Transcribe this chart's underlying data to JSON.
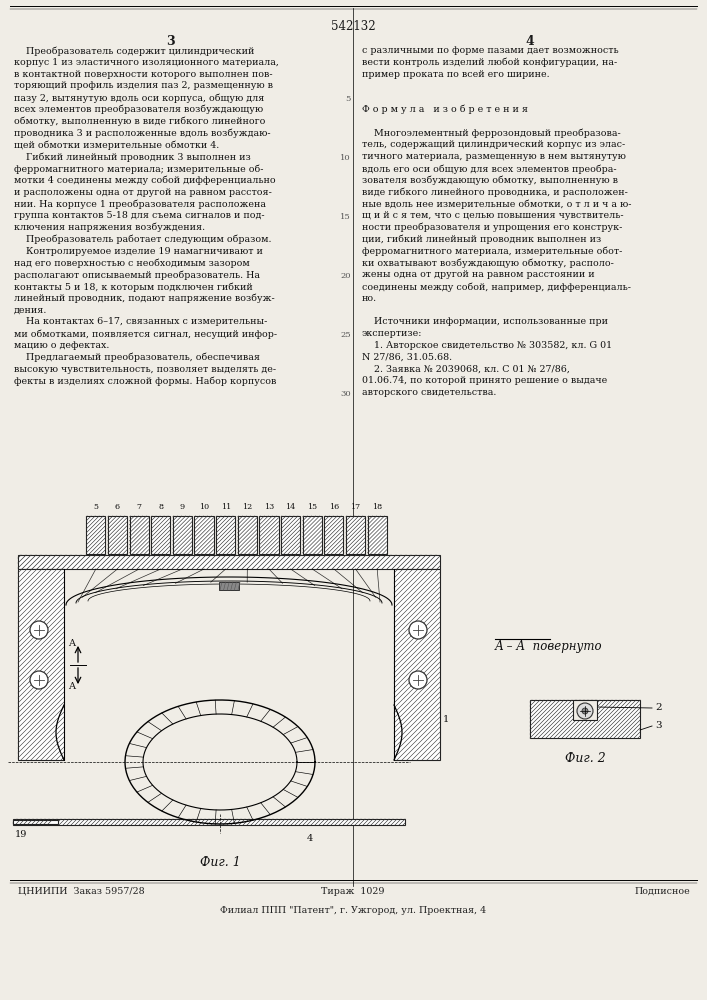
{
  "bg_color": "#f0ede6",
  "patent_number": "542132",
  "col_left_header": "3",
  "col_right_header": "4",
  "left_text_lines": [
    "    Преобразователь содержит цилиндрический",
    "корпус 1 из эластичного изоляционного материала,",
    "в контактной поверхности которого выполнен пов-",
    "торяющий профиль изделия паз 2, размещенную в",
    "пазу 2, вытянутую вдоль оси корпуса, общую для",
    "всех элементов преобразователя возбуждающую",
    "обмотку, выполненную в виде гибкого линейного",
    "проводника 3 и расположенные вдоль возбуждаю-",
    "щей обмотки измерительные обмотки 4.",
    "    Гибкий линейный проводник 3 выполнен из",
    "ферромагнитного материала; измерительные об-",
    "мотки 4 соединены между собой дифференциально",
    "и расположены одна от другой на равном расстоя-",
    "нии. На корпусе 1 преобразователя расположена",
    "группа контактов 5-18 для съема сигналов и под-",
    "ключения напряжения возбуждения.",
    "    Преобразователь работает следующим образом.",
    "    Контролируемое изделие 19 намагничивают и",
    "над его поверхностью с необходимым зазором",
    "располагают описываемый преобразователь. На",
    "контакты 5 и 18, к которым подключен гибкий",
    "линейный проводник, подают напряжение возбуж-",
    "дения.",
    "    На контактах 6–17, связанных с измерительны-",
    "ми обмотками, появляется сигнал, несущий инфор-",
    "мацию о дефектах.",
    "    Предлагаемый преобразователь, обеспечивая",
    "высокую чувствительность, позволяет выделять де-",
    "фекты в изделиях сложной формы. Набор корпусов"
  ],
  "right_text_lines": [
    "с различными по форме пазами дает возможность",
    "вести контроль изделий любой конфигурации, на-",
    "пример проката по всей его ширине.",
    "",
    "",
    "Ф о р м у л а   и з о б р е т е н и я",
    "",
    "    Многоэлементный феррозондовый преобразова-",
    "тель, содержащий цилиндрический корпус из элас-",
    "тичного материала, размещенную в нем вытянутую",
    "вдоль его оси общую для всех элементов преобра-",
    "зователя возбуждающую обмотку, выполненную в",
    "виде гибкого линейного проводника, и расположен-",
    "ные вдоль нее измерительные обмотки, о т л и ч а ю-",
    "щ и й с я тем, что с целью повышения чувствитель-",
    "ности преобразователя и упрощения его конструк-",
    "ции, гибкий линейный проводник выполнен из",
    "ферромагнитного материала, измерительные обот-",
    "ки охватывают возбуждающую обмотку, располо-",
    "жены одна от другой на равном расстоянии и",
    "соединены между собой, например, дифференциаль-",
    "но.",
    "",
    "    Источники информации, использованные при",
    "экспертизе:",
    "    1. Авторское свидетельство № 303582, кл. G 01",
    "N 27/86, 31.05.68.",
    "    2. Заявка № 2039068, кл. C 01 № 27/86,",
    "01.06.74, по которой принято решение о выдаче",
    "авторского свидетельства."
  ],
  "line_numbers_vals": [
    "5",
    "10",
    "15",
    "20",
    "25",
    "30"
  ],
  "coil_numbers": [
    "5",
    "6",
    "7",
    "8",
    "9",
    "10",
    "11",
    "12",
    "13",
    "14",
    "15",
    "16",
    "17",
    "18"
  ],
  "bottom_left": "ЦНИИПИ  Заказ 5957/28",
  "bottom_center": "Тираж  1029",
  "bottom_right": "Подписное",
  "bottom_addr": "Филиал ППП \"Патент\", г. Ужгород, ул. Проектная, 4",
  "fig1_label": "Фиг. 1",
  "fig2_label": "Фиг. 2",
  "aa_label": "А – А  повернуто"
}
